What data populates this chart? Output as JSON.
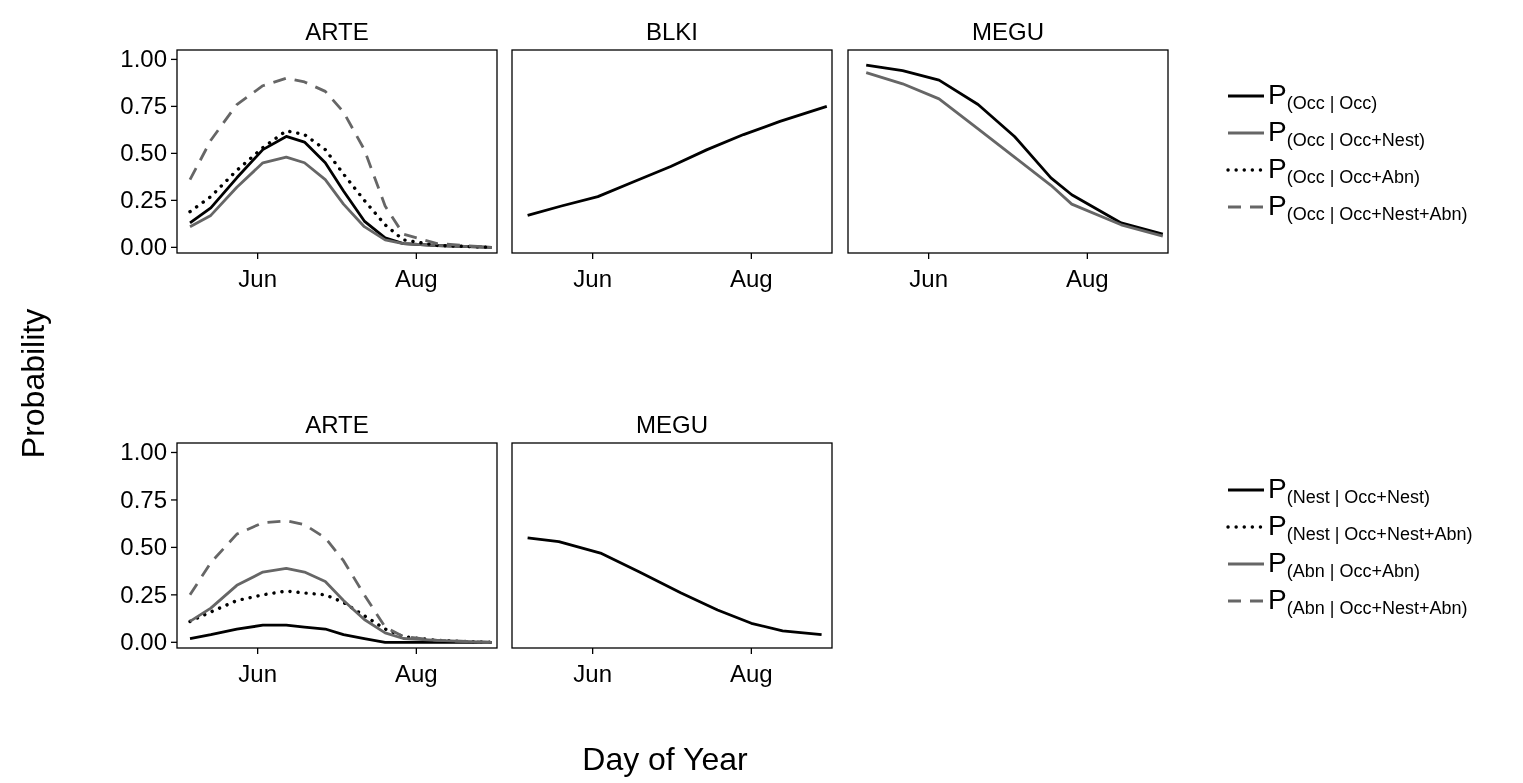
{
  "chart_data": [
    {
      "type": "line",
      "title": "ARTE",
      "ylabel": "Probability",
      "xlim": [
        "--05-01",
        "--09-01"
      ],
      "xticks": [
        {
          "value": "--06-01",
          "label": "Jun"
        },
        {
          "value": "--08-01",
          "label": "Aug"
        }
      ],
      "ylim": [
        -0.03,
        1.05
      ],
      "yticks": [
        {
          "value": 0,
          "label": "0.00"
        },
        {
          "value": 0.25,
          "label": "0.25"
        },
        {
          "value": 0.5,
          "label": "0.50"
        },
        {
          "value": 0.75,
          "label": "0.75"
        },
        {
          "value": 1,
          "label": "1.00"
        }
      ],
      "grid": false,
      "legend": "right",
      "x": [
        "--05-06",
        "--05-14",
        "--05-24",
        "--06-03",
        "--06-12",
        "--06-19",
        "--06-27",
        "--07-04",
        "--07-12",
        "--07-20",
        "--07-27",
        "--08-09",
        "--08-30"
      ],
      "series": [
        {
          "name": "P$_{(Occ | Occ)}$",
          "color": "#000000",
          "line_style": "solid",
          "values": [
            0.13,
            0.21,
            0.37,
            0.52,
            0.59,
            0.56,
            0.45,
            0.3,
            0.14,
            0.05,
            0.02,
            0.01,
            0.0
          ]
        },
        {
          "name": "P$_{(Occ | Occ+Nest)}$",
          "color": "#666666",
          "line_style": "solid",
          "values": [
            0.11,
            0.17,
            0.32,
            0.45,
            0.48,
            0.45,
            0.36,
            0.23,
            0.11,
            0.04,
            0.02,
            0.01,
            0.0
          ]
        },
        {
          "name": "P$_{(Occ | Occ+Abn)}$",
          "color": "#000000",
          "line_style": "dotted",
          "values": [
            0.19,
            0.27,
            0.41,
            0.53,
            0.62,
            0.6,
            0.52,
            0.39,
            0.25,
            0.12,
            0.04,
            0.01,
            0.0
          ]
        },
        {
          "name": "P$_{(Occ | Occ+Nest+Abn)}$",
          "color": "#666666",
          "line_style": "dashed",
          "values": [
            0.36,
            0.57,
            0.76,
            0.86,
            0.9,
            0.88,
            0.83,
            0.72,
            0.52,
            0.22,
            0.07,
            0.02,
            0.0
          ]
        }
      ]
    },
    {
      "type": "line",
      "title": "BLKI",
      "xlim": [
        "--05-01",
        "--09-01"
      ],
      "xticks": [
        {
          "value": "--06-01",
          "label": "Jun"
        },
        {
          "value": "--08-01",
          "label": "Aug"
        }
      ],
      "ylim": [
        -0.03,
        1.05
      ],
      "tick_labels": "x",
      "grid": false,
      "x": [
        "--05-07",
        "--05-20",
        "--06-03",
        "--06-17",
        "--07-01",
        "--07-15",
        "--07-29",
        "--08-12",
        "--08-30"
      ],
      "series": [
        {
          "color": "#000000",
          "line_style": "solid",
          "values": [
            0.17,
            0.22,
            0.27,
            0.35,
            0.43,
            0.52,
            0.6,
            0.67,
            0.75
          ]
        }
      ]
    },
    {
      "type": "line",
      "title": "MEGU",
      "xlim": [
        "--05-01",
        "--09-01"
      ],
      "xticks": [
        {
          "value": "--06-01",
          "label": "Jun"
        },
        {
          "value": "--08-01",
          "label": "Aug"
        }
      ],
      "ylim": [
        -0.03,
        1.05
      ],
      "tick_labels": "x",
      "grid": false,
      "x": [
        "--05-08",
        "--05-22",
        "--06-05",
        "--06-20",
        "--07-04",
        "--07-18",
        "--07-26",
        "--08-14",
        "--08-30"
      ],
      "series": [
        {
          "color": "#000000",
          "line_style": "solid",
          "values": [
            0.97,
            0.94,
            0.89,
            0.76,
            0.59,
            0.37,
            0.28,
            0.13,
            0.07
          ]
        },
        {
          "color": "#666666",
          "line_style": "solid",
          "values": [
            0.93,
            0.87,
            0.79,
            0.63,
            0.48,
            0.33,
            0.23,
            0.12,
            0.06
          ]
        }
      ]
    },
    {
      "type": "line",
      "title": "ARTE",
      "xlabel": "Day of Year",
      "xlim": [
        "--05-01",
        "--09-01"
      ],
      "xticks": [
        {
          "value": "--06-01",
          "label": "Jun"
        },
        {
          "value": "--08-01",
          "label": "Aug"
        }
      ],
      "ylim": [
        -0.03,
        1.05
      ],
      "yticks": [
        {
          "value": 0,
          "label": "0.00"
        },
        {
          "value": 0.25,
          "label": "0.25"
        },
        {
          "value": 0.5,
          "label": "0.50"
        },
        {
          "value": 0.75,
          "label": "0.75"
        },
        {
          "value": 1,
          "label": "1.00"
        }
      ],
      "grid": false,
      "legend": "right",
      "x": [
        "--05-06",
        "--05-14",
        "--05-24",
        "--06-03",
        "--06-12",
        "--06-19",
        "--06-27",
        "--07-04",
        "--07-12",
        "--07-20",
        "--07-27",
        "--08-09",
        "--08-30"
      ],
      "series": [
        {
          "name": "P$_{(Nest | Occ+Nest)}$",
          "color": "#000000",
          "line_style": "solid",
          "values": [
            0.02,
            0.04,
            0.07,
            0.09,
            0.09,
            0.08,
            0.07,
            0.04,
            0.02,
            0.0,
            0.0,
            0.0,
            0.0
          ]
        },
        {
          "name": "P$_{(Nest | Occ+Nest+Abn)}$",
          "color": "#000000",
          "line_style": "dotted",
          "values": [
            0.11,
            0.16,
            0.22,
            0.25,
            0.27,
            0.26,
            0.25,
            0.21,
            0.14,
            0.07,
            0.03,
            0.01,
            0.0
          ]
        },
        {
          "name": "P$_{(Abn | Occ+Abn)}$",
          "color": "#666666",
          "line_style": "solid",
          "values": [
            0.11,
            0.18,
            0.3,
            0.37,
            0.39,
            0.37,
            0.32,
            0.22,
            0.12,
            0.05,
            0.02,
            0.01,
            0.0
          ]
        },
        {
          "name": "P$_{(Abn | Occ+Nest+Abn)}$",
          "color": "#666666",
          "line_style": "dashed",
          "values": [
            0.25,
            0.42,
            0.57,
            0.63,
            0.64,
            0.62,
            0.55,
            0.43,
            0.25,
            0.08,
            0.03,
            0.01,
            0.0
          ]
        }
      ]
    },
    {
      "type": "line",
      "title": "MEGU",
      "xlim": [
        "--05-01",
        "--09-01"
      ],
      "xticks": [
        {
          "value": "--06-01",
          "label": "Jun"
        },
        {
          "value": "--08-01",
          "label": "Aug"
        }
      ],
      "ylim": [
        -0.03,
        1.05
      ],
      "tick_labels": "x",
      "grid": false,
      "x": [
        "--05-07",
        "--05-19",
        "--06-04",
        "--06-19",
        "--07-05",
        "--07-19",
        "--08-01",
        "--08-13",
        "--08-28"
      ],
      "series": [
        {
          "color": "#000000",
          "line_style": "solid",
          "values": [
            0.55,
            0.53,
            0.47,
            0.37,
            0.26,
            0.17,
            0.1,
            0.06,
            0.04
          ]
        }
      ]
    }
  ]
}
